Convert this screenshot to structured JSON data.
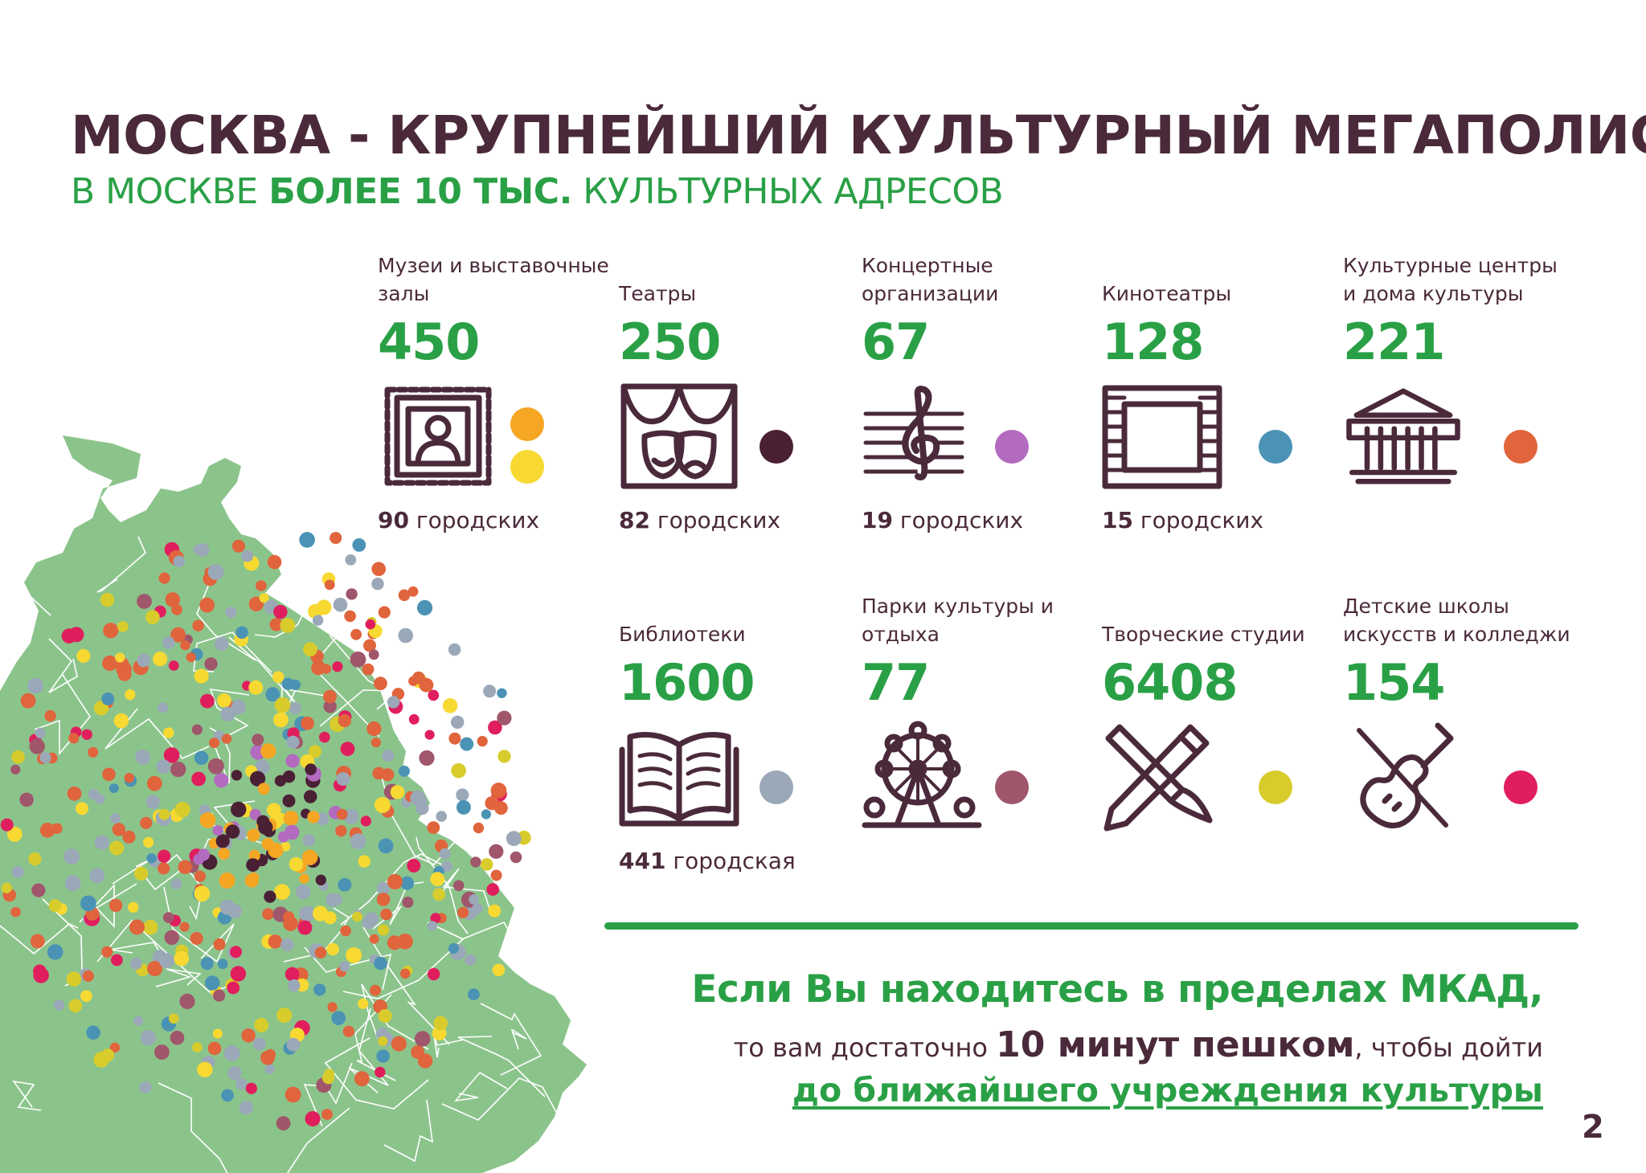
{
  "title": "МОСКВА - КРУПНЕЙШИЙ КУЛЬТУРНЫЙ МЕГАПОЛИС",
  "subtitle": {
    "pre": "В МОСКВЕ ",
    "bold": "БОЛЕЕ 10 ТЫС.",
    "post": " КУЛЬТУРНЫХ АДРЕСОВ"
  },
  "categories": [
    {
      "label": "Музеи и выставочные залы",
      "value": "450",
      "city_count": "90",
      "city_suffix": " городских",
      "icon": "framed-portrait-icon",
      "colors": [
        "#f5a623",
        "#f7d932"
      ]
    },
    {
      "label": "Театры",
      "value": "250",
      "city_count": "82",
      "city_suffix": " городских",
      "icon": "theatre-masks-icon",
      "colors": [
        "#4a2035"
      ]
    },
    {
      "label": "Концертные организации",
      "value": "67",
      "city_count": "19",
      "city_suffix": " городских",
      "icon": "treble-clef-icon",
      "colors": [
        "#b26bbf"
      ]
    },
    {
      "label": "Кинотеатры",
      "value": "128",
      "city_count": "15",
      "city_suffix": " городских",
      "icon": "film-frame-icon",
      "colors": [
        "#4a93b5"
      ]
    },
    {
      "label": "Культурные центры и дома культуры",
      "value": "221",
      "icon": "columned-building-icon",
      "colors": [
        "#e0643c"
      ]
    },
    {
      "label": "Библиотеки",
      "value": "1600",
      "city_count": "441",
      "city_suffix": " городская",
      "icon": "open-book-icon",
      "colors": [
        "#9aa8b8"
      ]
    },
    {
      "label": "Парки культуры и отдыха",
      "value": "77",
      "icon": "ferris-wheel-icon",
      "colors": [
        "#a0566b"
      ]
    },
    {
      "label": "Творческие студии",
      "value": "6408",
      "icon": "pencil-brush-icon",
      "colors": [
        "#d8cc2c"
      ]
    },
    {
      "label": "Детские школы искусств и колледжи",
      "value": "154",
      "icon": "violin-icon",
      "colors": [
        "#e01e5e"
      ]
    }
  ],
  "callout": {
    "line1": "Если Вы находитесь в пределах МКАД,",
    "line2_pre": "то вам достаточно ",
    "line2_bold": "10 минут пешком",
    "line2_post": ", чтобы дойти",
    "line3": "до ближайшего учреждения культуры"
  },
  "page_number": "2",
  "map": {
    "land_color": "#8bc48b",
    "border_color": "#ffffff",
    "dot_colors": [
      "#e0643c",
      "#9aa8b8",
      "#f5a623",
      "#f7d932",
      "#4a2035",
      "#b26bbf",
      "#4a93b5",
      "#a0566b",
      "#d8cc2c",
      "#e01e5e"
    ]
  }
}
